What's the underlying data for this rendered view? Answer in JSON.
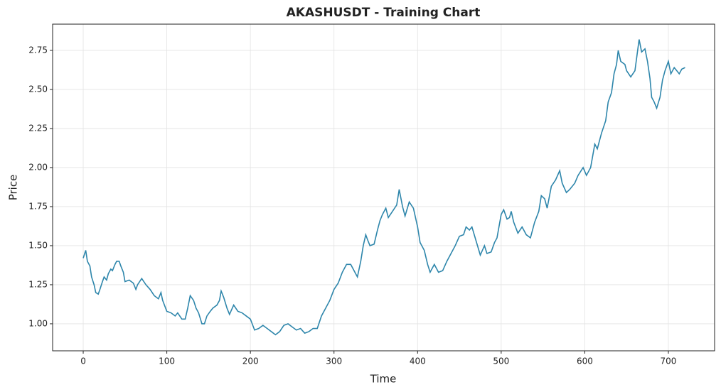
{
  "chart_data": {
    "type": "line",
    "title": "AKASHUSDT - Training Chart",
    "x_label": "Time",
    "y_label": "Price",
    "x": [
      0,
      3,
      5,
      8,
      10,
      13,
      15,
      18,
      20,
      23,
      25,
      28,
      30,
      33,
      35,
      38,
      40,
      43,
      45,
      48,
      50,
      55,
      60,
      63,
      65,
      70,
      75,
      80,
      85,
      90,
      93,
      95,
      100,
      105,
      110,
      113,
      118,
      122,
      125,
      128,
      132,
      135,
      138,
      142,
      145,
      148,
      152,
      155,
      160,
      163,
      165,
      168,
      172,
      175,
      180,
      185,
      190,
      195,
      200,
      205,
      210,
      215,
      220,
      225,
      230,
      235,
      240,
      245,
      250,
      255,
      260,
      265,
      270,
      275,
      280,
      285,
      290,
      295,
      300,
      305,
      310,
      315,
      320,
      325,
      328,
      332,
      335,
      338,
      340,
      343,
      348,
      352,
      355,
      358,
      362,
      365,
      370,
      375,
      378,
      382,
      385,
      390,
      395,
      400,
      403,
      408,
      412,
      415,
      420,
      425,
      430,
      435,
      440,
      445,
      450,
      455,
      458,
      462,
      465,
      470,
      475,
      480,
      483,
      488,
      492,
      495,
      500,
      503,
      507,
      510,
      512,
      515,
      520,
      525,
      530,
      535,
      540,
      545,
      548,
      552,
      555,
      560,
      565,
      570,
      573,
      578,
      582,
      588,
      592,
      598,
      602,
      607,
      612,
      615,
      620,
      625,
      628,
      632,
      635,
      638,
      640,
      643,
      648,
      650,
      655,
      660,
      663,
      665,
      668,
      672,
      675,
      678,
      680,
      683,
      686,
      690,
      693,
      696,
      700,
      703,
      707,
      710,
      713,
      716,
      720
    ],
    "series": [
      {
        "name": "AKASHUSDT",
        "color": "#2e86ab",
        "values": [
          1.42,
          1.47,
          1.4,
          1.37,
          1.3,
          1.25,
          1.2,
          1.19,
          1.22,
          1.27,
          1.3,
          1.28,
          1.32,
          1.35,
          1.34,
          1.38,
          1.4,
          1.4,
          1.37,
          1.33,
          1.27,
          1.28,
          1.26,
          1.22,
          1.25,
          1.29,
          1.25,
          1.22,
          1.18,
          1.16,
          1.2,
          1.15,
          1.08,
          1.07,
          1.05,
          1.07,
          1.03,
          1.03,
          1.1,
          1.18,
          1.15,
          1.1,
          1.07,
          1.0,
          1.0,
          1.05,
          1.08,
          1.1,
          1.12,
          1.15,
          1.21,
          1.17,
          1.1,
          1.06,
          1.12,
          1.08,
          1.07,
          1.05,
          1.03,
          0.96,
          0.97,
          0.99,
          0.97,
          0.95,
          0.93,
          0.95,
          0.99,
          1.0,
          0.98,
          0.96,
          0.97,
          0.94,
          0.95,
          0.97,
          0.97,
          1.05,
          1.1,
          1.15,
          1.22,
          1.26,
          1.33,
          1.38,
          1.38,
          1.33,
          1.3,
          1.4,
          1.5,
          1.57,
          1.54,
          1.5,
          1.51,
          1.6,
          1.66,
          1.7,
          1.74,
          1.68,
          1.72,
          1.76,
          1.86,
          1.75,
          1.69,
          1.78,
          1.74,
          1.62,
          1.52,
          1.47,
          1.38,
          1.33,
          1.38,
          1.33,
          1.34,
          1.4,
          1.45,
          1.5,
          1.56,
          1.57,
          1.62,
          1.6,
          1.62,
          1.53,
          1.44,
          1.5,
          1.45,
          1.46,
          1.52,
          1.55,
          1.7,
          1.73,
          1.67,
          1.68,
          1.72,
          1.65,
          1.58,
          1.62,
          1.57,
          1.55,
          1.65,
          1.72,
          1.82,
          1.8,
          1.74,
          1.88,
          1.92,
          1.98,
          1.9,
          1.84,
          1.86,
          1.9,
          1.95,
          2.0,
          1.95,
          2.0,
          2.15,
          2.12,
          2.22,
          2.3,
          2.42,
          2.48,
          2.6,
          2.66,
          2.75,
          2.68,
          2.66,
          2.62,
          2.58,
          2.62,
          2.74,
          2.82,
          2.74,
          2.76,
          2.68,
          2.57,
          2.45,
          2.42,
          2.38,
          2.45,
          2.56,
          2.62,
          2.68,
          2.6,
          2.64,
          2.62,
          2.6,
          2.63,
          2.64
        ]
      }
    ],
    "xlim": [
      -36.6,
      755.3
    ],
    "ylim": [
      0.827,
      2.918
    ],
    "xticks": [
      0,
      100,
      200,
      300,
      400,
      500,
      600,
      700
    ],
    "yticks": [
      {
        "value": 1,
        "label": "1.00"
      },
      {
        "value": 1.25,
        "label": "1.25"
      },
      {
        "value": 1.5,
        "label": "1.50"
      },
      {
        "value": 1.75,
        "label": "1.75"
      },
      {
        "value": 2,
        "label": "2.00"
      },
      {
        "value": 2.25,
        "label": "2.25"
      },
      {
        "value": 2.5,
        "label": "2.50"
      },
      {
        "value": 2.75,
        "label": "2.75"
      }
    ],
    "grid": true
  }
}
